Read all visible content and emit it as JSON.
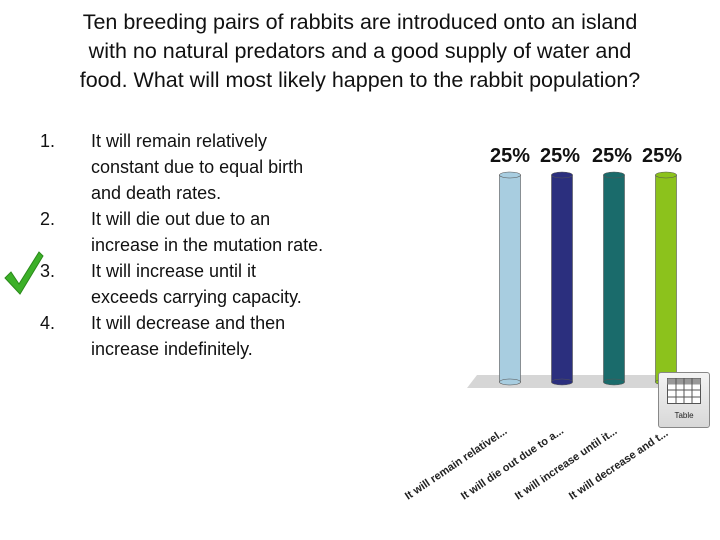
{
  "question": {
    "lines": [
      "Ten breeding pairs of rabbits are introduced onto an island",
      "with no natural predators and a good supply of water and",
      "food. What will most likely happen to the rabbit population?"
    ]
  },
  "answers": [
    {
      "num": "1.",
      "lines": [
        "It will remain relatively",
        "constant due to equal birth",
        "and death rates."
      ]
    },
    {
      "num": "2.",
      "lines": [
        "It will die out due to an",
        "increase in the mutation rate."
      ]
    },
    {
      "num": "3.",
      "lines": [
        "It will increase until it",
        "exceeds carrying capacity."
      ]
    },
    {
      "num": "4.",
      "lines": [
        "It will decrease and then",
        "increase indefinitely."
      ]
    }
  ],
  "correct_icon": "checkmark-icon",
  "table_button": {
    "label": "Table",
    "icon": "table-grid-icon"
  },
  "chart_data": {
    "type": "bar",
    "categories": [
      "It will remain relativel...",
      "It will die out due to a...",
      "It will increase until it...",
      "It will decrease and t..."
    ],
    "values": [
      25,
      25,
      25,
      25
    ],
    "value_labels": [
      "25%",
      "25%",
      "25%",
      "25%"
    ],
    "colors": [
      "#a8cde0",
      "#2b2f7e",
      "#1a6b6b",
      "#8cc21c"
    ],
    "ylim": [
      0,
      25
    ],
    "title": "",
    "xlabel": "",
    "ylabel": ""
  }
}
